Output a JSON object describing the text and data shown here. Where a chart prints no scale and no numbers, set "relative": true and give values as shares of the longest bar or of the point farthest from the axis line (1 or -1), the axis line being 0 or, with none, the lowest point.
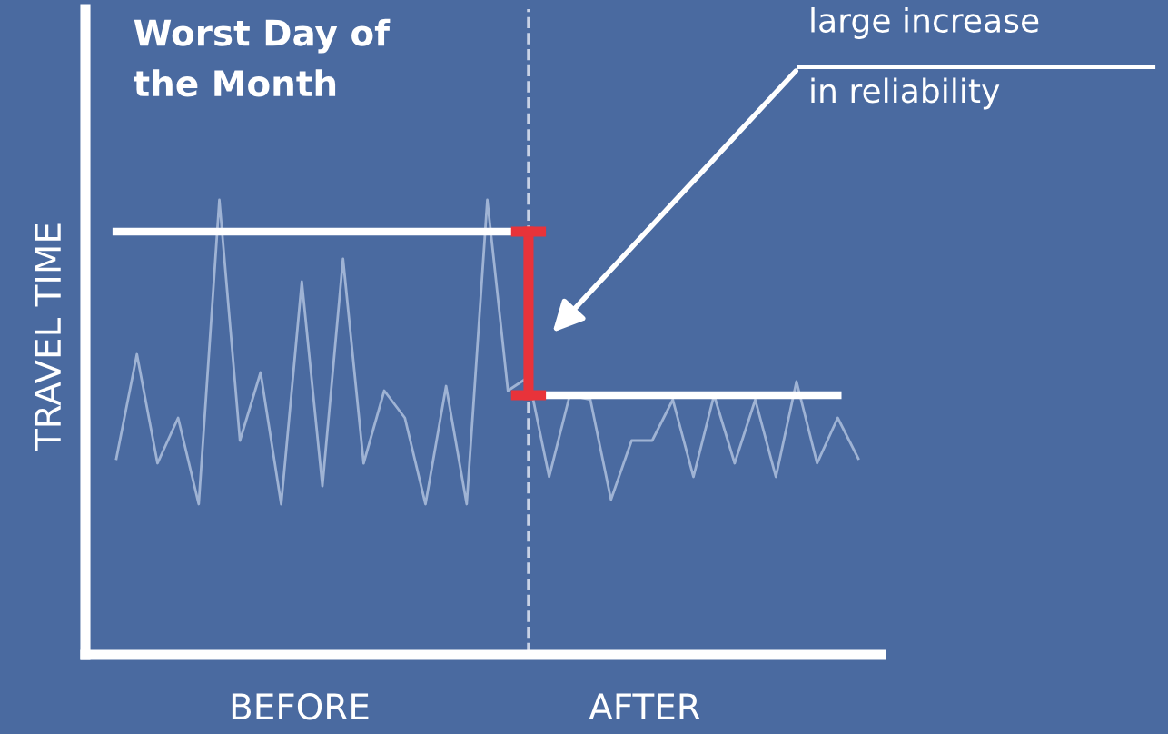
{
  "chart_data": {
    "type": "line",
    "relative": true,
    "title": "Worst Day of\nthe Month",
    "ylabel": "TRAVEL TIME",
    "categories": [
      null,
      null,
      null,
      null,
      null,
      null,
      null,
      null,
      null,
      null,
      null,
      null,
      null,
      null,
      null,
      null,
      null,
      null,
      null,
      null,
      null,
      null,
      null,
      null,
      null,
      null,
      null,
      null,
      null,
      null,
      null,
      null,
      null,
      null,
      null,
      null,
      null
    ],
    "series": [
      {
        "color": "#9fb3d4",
        "values": [
          0.43,
          0.66,
          0.42,
          0.52,
          0.33,
          1.0,
          0.47,
          0.62,
          0.33,
          0.82,
          0.37,
          0.87,
          0.42,
          0.58,
          0.52,
          0.33,
          0.59,
          0.33,
          1.0,
          0.58,
          0.61,
          0.39,
          0.57,
          0.56,
          0.34,
          0.47,
          0.47,
          0.56,
          0.39,
          0.57,
          0.42,
          0.56,
          0.39,
          0.6,
          0.42,
          0.52,
          0.43
        ]
      },
      {
        "color": "#ffffff",
        "values": [
          0.93,
          0.93,
          0.93,
          0.93,
          0.93,
          0.93,
          0.93,
          0.93,
          0.93,
          0.93,
          0.93,
          0.93,
          0.93,
          0.93,
          0.93,
          0.93,
          0.93,
          0.93,
          0.93,
          0.93,
          0.93,
          null,
          null,
          null,
          null,
          null,
          null,
          null,
          null,
          null,
          null,
          null,
          null,
          null,
          null,
          null,
          null
        ]
      },
      {
        "color": "#ffffff",
        "values": [
          null,
          null,
          null,
          null,
          null,
          null,
          null,
          null,
          null,
          null,
          null,
          null,
          null,
          null,
          null,
          null,
          null,
          null,
          null,
          null,
          0.57,
          0.57,
          0.57,
          0.57,
          0.57,
          0.57,
          0.57,
          0.57,
          0.57,
          0.57,
          0.57,
          0.57,
          0.57,
          0.57,
          0.57,
          0.57,
          null
        ]
      }
    ],
    "annotations": [
      "large increase\nin reliability",
      "BEFORE",
      "AFTER"
    ]
  }
}
